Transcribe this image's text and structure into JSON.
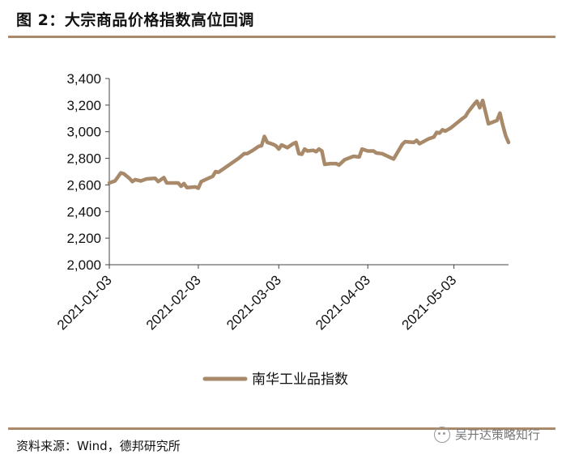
{
  "figure": {
    "title": "图 2：大宗商品价格指数高位回调",
    "source": "资料来源：Wind，德邦研究所",
    "watermark": "吴开达策略知行",
    "watermark_icon": "wechat-icon"
  },
  "chart_data": {
    "type": "line",
    "title": "",
    "xlabel": "",
    "ylabel": "",
    "ylim": [
      2000,
      3400
    ],
    "yticks": [
      "2,000",
      "2,200",
      "2,400",
      "2,600",
      "2,800",
      "3,000",
      "3,200",
      "3,400"
    ],
    "xticks": [
      "2021-01-03",
      "2021-02-03",
      "2021-03-03",
      "2021-04-03",
      "2021-05-03"
    ],
    "legend": "bottom-center",
    "grid": false,
    "series": [
      {
        "name": "南华工业品指数",
        "color": "#a88a6a",
        "points": [
          [
            "2021-01-03",
            2615
          ],
          [
            "2021-01-05",
            2630
          ],
          [
            "2021-01-07",
            2690
          ],
          [
            "2021-01-08",
            2685
          ],
          [
            "2021-01-10",
            2650
          ],
          [
            "2021-01-11",
            2625
          ],
          [
            "2021-01-12",
            2640
          ],
          [
            "2021-01-14",
            2630
          ],
          [
            "2021-01-16",
            2645
          ],
          [
            "2021-01-19",
            2650
          ],
          [
            "2021-01-20",
            2625
          ],
          [
            "2021-01-22",
            2655
          ],
          [
            "2021-01-23",
            2615
          ],
          [
            "2021-01-27",
            2615
          ],
          [
            "2021-01-28",
            2590
          ],
          [
            "2021-01-29",
            2610
          ],
          [
            "2021-01-30",
            2580
          ],
          [
            "2021-02-02",
            2585
          ],
          [
            "2021-02-03",
            2575
          ],
          [
            "2021-02-04",
            2625
          ],
          [
            "2021-02-06",
            2645
          ],
          [
            "2021-02-08",
            2665
          ],
          [
            "2021-02-09",
            2700
          ],
          [
            "2021-02-10",
            2695
          ],
          [
            "2021-02-17",
            2800
          ],
          [
            "2021-02-19",
            2835
          ],
          [
            "2021-02-20",
            2835
          ],
          [
            "2021-02-22",
            2860
          ],
          [
            "2021-02-24",
            2890
          ],
          [
            "2021-02-25",
            2895
          ],
          [
            "2021-02-26",
            2965
          ],
          [
            "2021-02-27",
            2920
          ],
          [
            "2021-03-01",
            2905
          ],
          [
            "2021-03-02",
            2895
          ],
          [
            "2021-03-03",
            2870
          ],
          [
            "2021-03-04",
            2900
          ],
          [
            "2021-03-06",
            2880
          ],
          [
            "2021-03-08",
            2910
          ],
          [
            "2021-03-09",
            2920
          ],
          [
            "2021-03-10",
            2835
          ],
          [
            "2021-03-11",
            2830
          ],
          [
            "2021-03-12",
            2870
          ],
          [
            "2021-03-13",
            2855
          ],
          [
            "2021-03-15",
            2860
          ],
          [
            "2021-03-16",
            2850
          ],
          [
            "2021-03-17",
            2870
          ],
          [
            "2021-03-18",
            2855
          ],
          [
            "2021-03-19",
            2755
          ],
          [
            "2021-03-21",
            2760
          ],
          [
            "2021-03-23",
            2760
          ],
          [
            "2021-03-24",
            2750
          ],
          [
            "2021-03-26",
            2790
          ],
          [
            "2021-03-29",
            2815
          ],
          [
            "2021-03-31",
            2810
          ],
          [
            "2021-04-01",
            2870
          ],
          [
            "2021-04-03",
            2855
          ],
          [
            "2021-04-05",
            2855
          ],
          [
            "2021-04-06",
            2840
          ],
          [
            "2021-04-08",
            2835
          ],
          [
            "2021-04-12",
            2795
          ],
          [
            "2021-04-15",
            2905
          ],
          [
            "2021-04-16",
            2925
          ],
          [
            "2021-04-19",
            2920
          ],
          [
            "2021-04-20",
            2935
          ],
          [
            "2021-04-21",
            2910
          ],
          [
            "2021-04-24",
            2945
          ],
          [
            "2021-04-26",
            2960
          ],
          [
            "2021-04-27",
            2995
          ],
          [
            "2021-04-28",
            2990
          ],
          [
            "2021-04-29",
            3015
          ],
          [
            "2021-04-30",
            3005
          ],
          [
            "2021-05-02",
            3030
          ],
          [
            "2021-05-06",
            3100
          ],
          [
            "2021-05-07",
            3115
          ],
          [
            "2021-05-08",
            3150
          ],
          [
            "2021-05-10",
            3205
          ],
          [
            "2021-05-11",
            3230
          ],
          [
            "2021-05-12",
            3180
          ],
          [
            "2021-05-13",
            3235
          ],
          [
            "2021-05-15",
            3060
          ],
          [
            "2021-05-18",
            3085
          ],
          [
            "2021-05-19",
            3140
          ],
          [
            "2021-05-20",
            3050
          ],
          [
            "2021-05-21",
            2970
          ],
          [
            "2021-05-22",
            2920
          ]
        ]
      }
    ]
  }
}
